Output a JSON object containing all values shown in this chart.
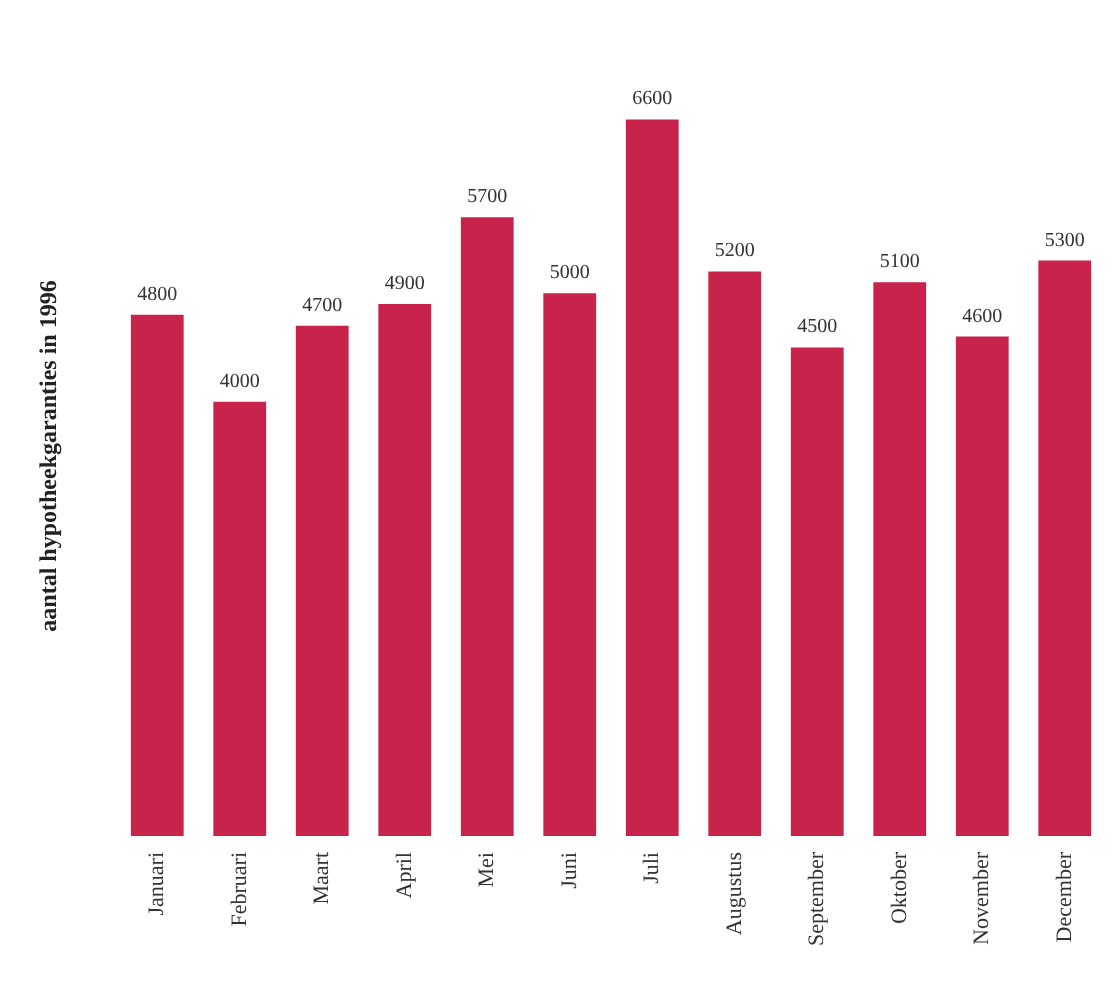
{
  "chart_data": {
    "type": "bar",
    "ylabel": "aantal hypotheekgaranties in 1996",
    "categories": [
      "Januari",
      "Februari",
      "Maart",
      "April",
      "Mei",
      "Juni",
      "Juli",
      "Augustus",
      "September",
      "Oktober",
      "November",
      "December"
    ],
    "values": [
      4800,
      4000,
      4700,
      4900,
      5700,
      5000,
      6600,
      5200,
      4500,
      5100,
      4600,
      5300
    ],
    "color": "#c8234a",
    "data_labels": true
  }
}
